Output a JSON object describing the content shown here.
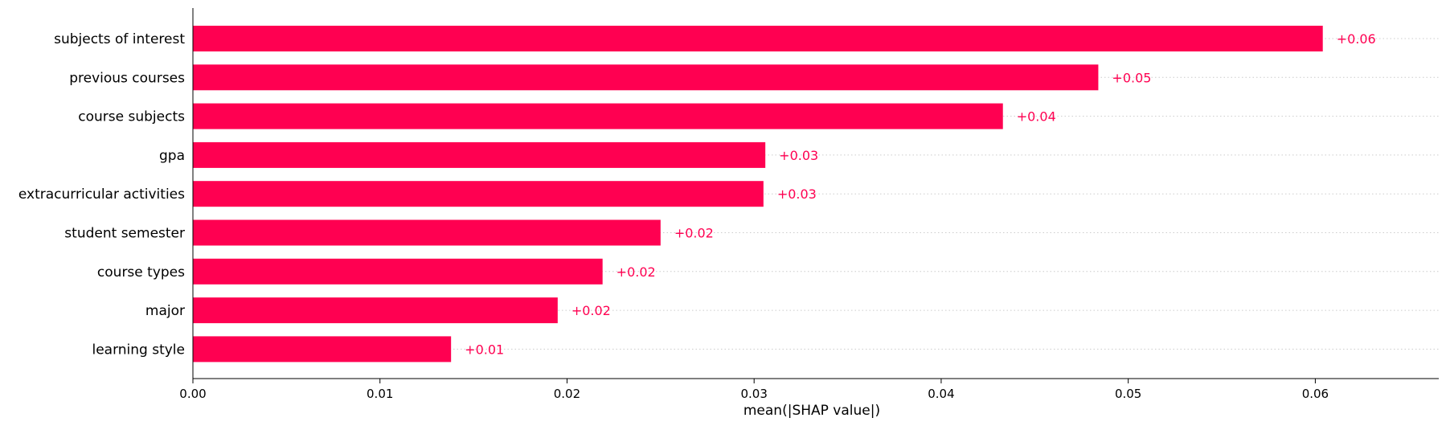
{
  "chart_data": {
    "type": "bar",
    "orientation": "horizontal",
    "categories": [
      "subjects of interest",
      "previous courses",
      "course subjects",
      "gpa",
      "extracurricular activities",
      "student semester",
      "course types",
      "major",
      "learning style"
    ],
    "values": [
      0.0604,
      0.0484,
      0.0433,
      0.0306,
      0.0305,
      0.025,
      0.0219,
      0.0195,
      0.0138
    ],
    "value_labels": [
      "+0.06",
      "+0.05",
      "+0.04",
      "+0.03",
      "+0.03",
      "+0.02",
      "+0.02",
      "+0.02",
      "+0.01"
    ],
    "xlabel": "mean(|SHAP value|)",
    "ylabel": "",
    "xlim": [
      0,
      0.0666
    ],
    "xticks": [
      0.0,
      0.01,
      0.02,
      0.03,
      0.04,
      0.05,
      0.06
    ],
    "xtick_labels": [
      "0.00",
      "0.01",
      "0.02",
      "0.03",
      "0.04",
      "0.05",
      "0.06"
    ],
    "grid": "dotted horizontal guide lines per bar",
    "legend": "none",
    "bar_color": "#ff0051",
    "label_color": "#ff0051"
  }
}
